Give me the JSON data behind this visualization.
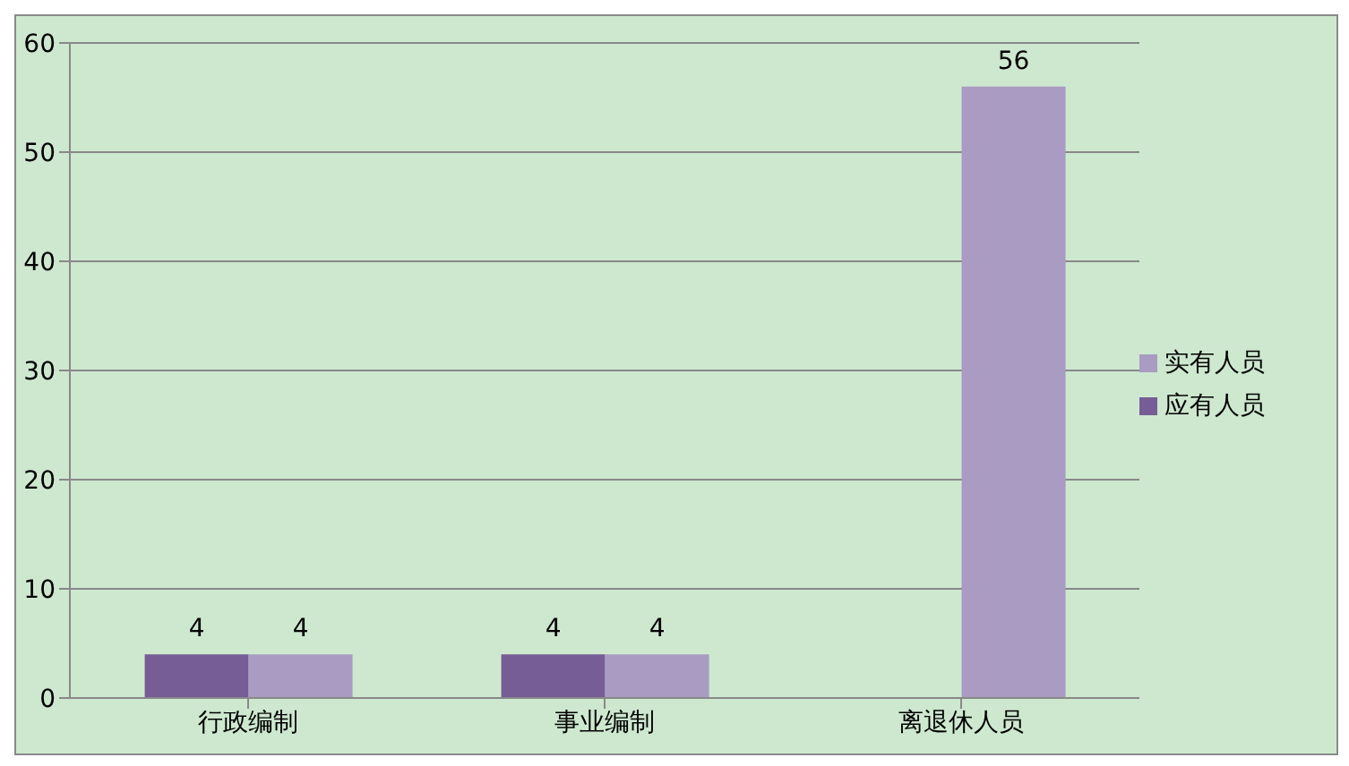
{
  "chart_data": {
    "type": "bar",
    "categories": [
      "行政编制",
      "事业编制",
      "离退休人员"
    ],
    "series": [
      {
        "name": "应有人员",
        "color": "#765d96",
        "values": [
          4,
          4,
          null
        ]
      },
      {
        "name": "实有人员",
        "color": "#a99bc1",
        "values": [
          4,
          4,
          56
        ]
      }
    ],
    "ylim": [
      0,
      60
    ],
    "yticks": [
      0,
      10,
      20,
      30,
      40,
      50,
      60
    ],
    "grid": "y",
    "legend": "right",
    "data_labels": true
  }
}
